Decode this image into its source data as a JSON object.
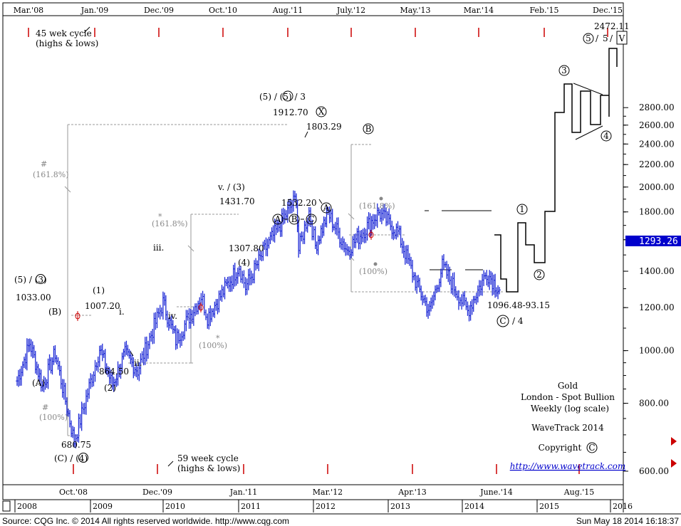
{
  "chart_data": {
    "type": "ohlc",
    "title": "Gold",
    "subtitle_lines": [
      "London - Spot Bullion",
      "Weekly (log scale)"
    ],
    "brand": "WaveTrack 2014",
    "copyright": "Copyright",
    "copyright_symbol": "C",
    "url": "http://www.wavetrack.com",
    "current_price": "1293.26",
    "y_scale": "log",
    "ylim": [
      540,
      2900
    ],
    "y_ticks": [
      {
        "value": 600,
        "label": "600.00"
      },
      {
        "value": 800,
        "label": "800.00"
      },
      {
        "value": 1000,
        "label": "1000.00"
      },
      {
        "value": 1200,
        "label": "1200.00"
      },
      {
        "value": 1400,
        "label": "1400.00"
      },
      {
        "value": 1600,
        "label": "1600.00"
      },
      {
        "value": 1800,
        "label": "1800.00"
      },
      {
        "value": 2000,
        "label": "2000.00"
      },
      {
        "value": 2200,
        "label": "2200.00"
      },
      {
        "value": 2400,
        "label": "2400.00"
      },
      {
        "value": 2600,
        "label": "2600.00"
      },
      {
        "value": 2800,
        "label": "2800.00"
      }
    ],
    "x_years": [
      "2008",
      "2009",
      "2010",
      "2011",
      "2012",
      "2013",
      "2014",
      "2015",
      "2016"
    ],
    "top_cycle_labels": [
      "Mar.'08",
      "Jan.'09",
      "Dec.'09",
      "Oct.'10",
      "Aug.'11",
      "July.'12",
      "May.'13",
      "Mar.'14",
      "Feb.'15",
      "Dec.'15"
    ],
    "bottom_cycle_labels": [
      "Oct.'08",
      "Dec.'09",
      "Jan.'11",
      "Mar.'12",
      "Apr.'13",
      "June.'14",
      "Aug.'15"
    ],
    "cycle_notes": {
      "top": [
        "45 wek cycle",
        "(highs & lows)"
      ],
      "bottom": [
        "59 week cycle",
        "(highs & lows)"
      ]
    },
    "price_series": [
      {
        "date": "2008-01",
        "value": 880
      },
      {
        "date": "2008-03",
        "value": 1033
      },
      {
        "date": "2008-05",
        "value": 860
      },
      {
        "date": "2008-07",
        "value": 990
      },
      {
        "date": "2008-10",
        "value": 680.75
      },
      {
        "date": "2009-02",
        "value": 1007.2
      },
      {
        "date": "2009-04",
        "value": 864.5
      },
      {
        "date": "2009-06",
        "value": 985
      },
      {
        "date": "2009-08",
        "value": 920
      },
      {
        "date": "2009-12",
        "value": 1226
      },
      {
        "date": "2010-02",
        "value": 1045
      },
      {
        "date": "2010-06",
        "value": 1260
      },
      {
        "date": "2010-07",
        "value": 1155
      },
      {
        "date": "2010-12",
        "value": 1431.7
      },
      {
        "date": "2011-01",
        "value": 1307.8
      },
      {
        "date": "2011-04",
        "value": 1530
      },
      {
        "date": "2011-09",
        "value": 1912.7
      },
      {
        "date": "2011-09",
        "value": 1532.2
      },
      {
        "date": "2011-11",
        "value": 1803.29
      },
      {
        "date": "2011-12",
        "value": 1560
      },
      {
        "date": "2012-02",
        "value": 1790
      },
      {
        "date": "2012-05",
        "value": 1530
      },
      {
        "date": "2012-10",
        "value": 1796
      },
      {
        "date": "2013-01",
        "value": 1650
      },
      {
        "date": "2013-04",
        "value": 1320
      },
      {
        "date": "2013-06",
        "value": 1180
      },
      {
        "date": "2013-08",
        "value": 1430
      },
      {
        "date": "2013-12",
        "value": 1182
      },
      {
        "date": "2014-03",
        "value": 1392
      },
      {
        "date": "2014-05",
        "value": 1293.26
      }
    ],
    "projection": [
      {
        "date": "2014-05",
        "value": 1293.26
      },
      {
        "date": "2014-06",
        "value": 1310
      },
      {
        "date": "2014-08",
        "value": 1096.48
      },
      {
        "date": "2014-09",
        "value": 1380
      },
      {
        "date": "2014-11",
        "value": 1200
      },
      {
        "date": "2015-02",
        "value": 1430
      },
      {
        "date": "2015-04",
        "value": 1990
      },
      {
        "date": "2015-06",
        "value": 2190
      },
      {
        "date": "2015-07",
        "value": 1860
      },
      {
        "date": "2015-08",
        "value": 2130
      },
      {
        "date": "2015-09",
        "value": 1920
      },
      {
        "date": "2015-10",
        "value": 2110
      },
      {
        "date": "2015-11",
        "value": 1960
      },
      {
        "date": "2015-12",
        "value": 2472.11
      }
    ],
    "annotations": {
      "wave_a": "(A)",
      "wave_b": "(B)",
      "wave_5_3": "(5) / (3)",
      "v_1033": "1033.00",
      "v_680": "680.75",
      "wave_c4": "(C) / (4)",
      "wave_1": "(1)",
      "v_1007": "1007.20",
      "wave_i": "i.",
      "wave_ii": "ii.",
      "v_864": "864.50",
      "wave_2": "(2)",
      "wave_iii": "iii.",
      "wave_iv": "iv.",
      "wave_v3": "v. / (3)",
      "v_1431": "1431.70",
      "v_1307": "1307.80",
      "wave_4": "(4)",
      "wave_top": "(5) / (5) / 3",
      "v_1912": "1912.70",
      "wave_x": "X",
      "v_1803": "1803.29",
      "v_1532": "1532.20",
      "abc_a": "A",
      "abc_b": "B",
      "abc_c": "C",
      "circ_a": "A",
      "circ_b": "B",
      "fib_1618": "(161.8%)",
      "fib_100": "(100%)",
      "fib_1618b": "(161.8%)",
      "fib_100b": "(100%)",
      "fib_1618c": "(161.8%)",
      "fib_100c": "(100%)",
      "hash": "#",
      "star": "*",
      "target_range": "1096.48-93.15",
      "wave_c_4": "C",
      "slash4": "/ 4",
      "p1": "1",
      "p2": "2",
      "p3": "3",
      "p4": "4",
      "p5": "5",
      "top_v": "V",
      "v_2472": "2472.11"
    },
    "colors": {
      "bars": "#1f2bd6",
      "fib": "#999999",
      "phi": "#cc0000",
      "cycle": "#cc0000",
      "highlight": "#0000cc"
    }
  },
  "footer": {
    "left": "Source: CQG Inc. © 2014 All rights reserved worldwide. http://www.cqg.com",
    "right": "Sun May 18 2014 16:18:37"
  }
}
